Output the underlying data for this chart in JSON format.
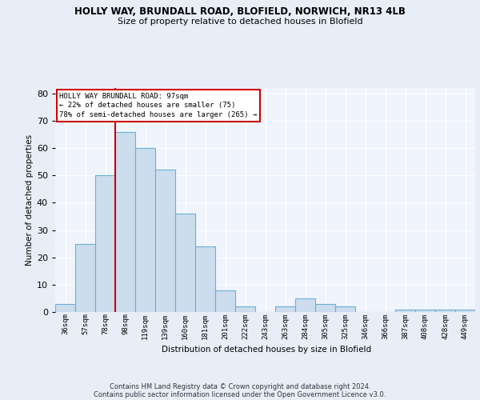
{
  "title1": "HOLLY WAY, BRUNDALL ROAD, BLOFIELD, NORWICH, NR13 4LB",
  "title2": "Size of property relative to detached houses in Blofield",
  "xlabel": "Distribution of detached houses by size in Blofield",
  "ylabel": "Number of detached properties",
  "categories": [
    "36sqm",
    "57sqm",
    "78sqm",
    "98sqm",
    "119sqm",
    "139sqm",
    "160sqm",
    "181sqm",
    "201sqm",
    "222sqm",
    "243sqm",
    "263sqm",
    "284sqm",
    "305sqm",
    "325sqm",
    "346sqm",
    "366sqm",
    "387sqm",
    "408sqm",
    "428sqm",
    "449sqm"
  ],
  "values": [
    3,
    25,
    50,
    66,
    60,
    52,
    36,
    24,
    8,
    2,
    0,
    2,
    5,
    3,
    2,
    0,
    0,
    1,
    1,
    1,
    1
  ],
  "bar_color": "#ccdded",
  "bar_edgecolor": "#6aafd6",
  "redline_index": 3,
  "redline_color": "#cc0000",
  "annotation_text": "HOLLY WAY BRUNDALL ROAD: 97sqm\n← 22% of detached houses are smaller (75)\n78% of semi-detached houses are larger (265) →",
  "annotation_box_color": "white",
  "annotation_box_edgecolor": "#cc0000",
  "ylim": [
    0,
    82
  ],
  "yticks": [
    0,
    10,
    20,
    30,
    40,
    50,
    60,
    70,
    80
  ],
  "footer1": "Contains HM Land Registry data © Crown copyright and database right 2024.",
  "footer2": "Contains public sector information licensed under the Open Government Licence v3.0.",
  "bg_color": "#e8eef8",
  "plot_bg_color": "#f0f4fc"
}
